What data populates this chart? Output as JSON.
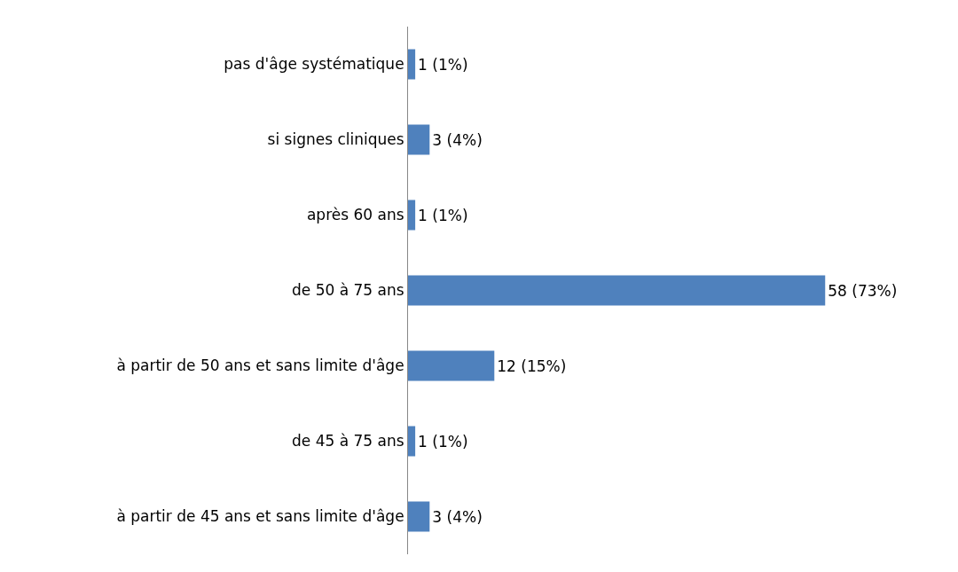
{
  "chart_data": {
    "type": "bar",
    "orientation": "horizontal",
    "categories": [
      "pas d'âge systématique",
      "si signes cliniques",
      "après 60 ans",
      "de 50 à 75 ans",
      "à partir de 50 ans et sans limite d'âge",
      "de 45 à 75 ans",
      "à partir de 45 ans et sans limite d'âge"
    ],
    "values": [
      1,
      3,
      1,
      58,
      12,
      1,
      3
    ],
    "value_labels": [
      "1 (1%)",
      "3 (4%)",
      "1 (1%)",
      "58 (73%)",
      "12 (15%)",
      "1 (1%)",
      "3 (4%)"
    ],
    "color": "#4f81bd",
    "tick_labels": "y"
  }
}
